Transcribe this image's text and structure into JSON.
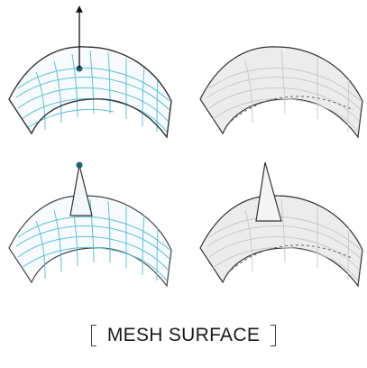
{
  "caption": {
    "text": "MESH SURFACE"
  },
  "colors": {
    "mesh_line": "#5ec1d9",
    "outline": "#333333",
    "grey_fill": "#e6e6e6",
    "grey_line": "#c4c4c4",
    "control_point": "#1b5f7a"
  },
  "panels": [
    {
      "name": "mesh-grid-with-vector",
      "style": "wireframe"
    },
    {
      "name": "smooth-surface",
      "style": "shaded"
    },
    {
      "name": "mesh-grid-with-spike",
      "style": "wireframe"
    },
    {
      "name": "surface-with-spike",
      "style": "shaded"
    }
  ]
}
